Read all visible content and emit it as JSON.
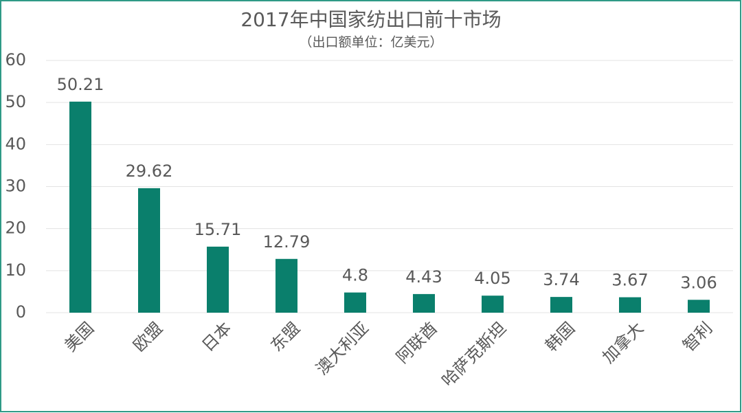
{
  "chart_data": {
    "type": "bar",
    "title": "2017年中国家纺出口前十市场",
    "subtitle": "（出口额单位：亿美元）",
    "categories": [
      "美国",
      "欧盟",
      "日本",
      "东盟",
      "澳大利亚",
      "阿联酋",
      "哈萨克斯坦",
      "韩国",
      "加拿大",
      "智利"
    ],
    "values": [
      50.21,
      29.62,
      15.71,
      12.79,
      4.8,
      4.43,
      4.05,
      3.74,
      3.67,
      3.06
    ],
    "color": "#0a7f6c",
    "ylim": [
      0,
      60
    ],
    "yticks": [
      0,
      10,
      20,
      30,
      40,
      50,
      60
    ],
    "grid": true
  }
}
